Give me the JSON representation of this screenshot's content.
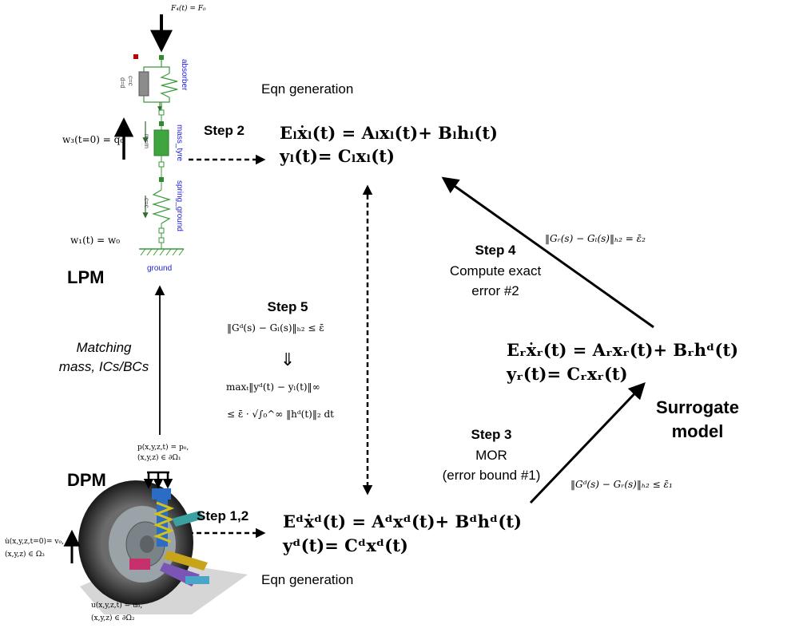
{
  "lpm": {
    "label": "LPM",
    "force": "F₄(t) = F₀",
    "w3": "w₃(t=0) = q₀",
    "w1": "w₁(t) = w₀",
    "components": {
      "absorber": "absorber",
      "mass_tyre": "mass_tyre",
      "spring_ground": "spring_ground",
      "ground": "ground",
      "c_param": "c=c",
      "d_param": "d=d",
      "m_param": "m=m",
      "c2_param": "c=c"
    }
  },
  "dpm": {
    "label": "DPM",
    "load_line1": "p(x,y,z,t) = p₀,",
    "load_line2": "(x,y,z) ∈ ∂Ω₁",
    "ic_line1": "u̇(x,y,z,t=0)= v₀,",
    "ic_line2": "(x,y,z) ∈ Ω₃",
    "bc_line1": "u(x,y,z,t) = u₀,",
    "bc_line2": "(x,y,z) ∈ ∂Ω₂"
  },
  "matching": {
    "line1": "Matching",
    "line2": "mass, ICs/BCs"
  },
  "eqn_top": {
    "caption": "Eqn generation",
    "line1": "Eₗẋₗ(t) = Aₗxₗ(t)+ Bₗhₗ(t)",
    "line2": "yₗ(t)= Cₗxₗ(t)"
  },
  "eqn_bottom": {
    "caption": "Eqn generation",
    "line1": "Eᵈẋᵈ(t) = Aᵈxᵈ(t)+ Bᵈhᵈ(t)",
    "line2": "yᵈ(t)= Cᵈxᵈ(t)"
  },
  "eqn_right": {
    "line1": "Eᵣẋᵣ(t) = Aᵣxᵣ(t)+ Bᵣhᵈ(t)",
    "line2": "yᵣ(t)= Cᵣxᵣ(t)"
  },
  "steps": {
    "step2": "Step 2",
    "step12": "Step 1,2",
    "step3_title": "Step 3",
    "step3_line1": "MOR",
    "step3_line2": "(error bound #1)",
    "step4_title": "Step 4",
    "step4_line1": "Compute exact",
    "step4_line2": "error #2",
    "step5_title": "Step 5"
  },
  "step5_math": {
    "bound": "‖Gᵈ(s) − Gₗ(s)‖ₕ₂ ≤ ε̄",
    "implies": "⇓",
    "max_line": "maxₜ‖yᵈ(t) − yₗ(t)‖∞",
    "rhs_line": "≤ ε̄ · √∫₀^∞ ‖hᵈ(t)‖₂ dt"
  },
  "errors": {
    "error1": "‖Gᵈ(s) − Gᵣ(s)‖ₕ₂ ≤ ε̄₁",
    "error2": "‖Gᵣ(s) − Gₗ(s)‖ₕ₂ = ε̄₂"
  },
  "surrogate": {
    "line1": "Surrogate",
    "line2": "model"
  },
  "colors": {
    "spring_green": "#3a9a3a",
    "node_green": "#2e8b2e",
    "node_red": "#c00000",
    "label_blue": "#1f1fd8"
  }
}
